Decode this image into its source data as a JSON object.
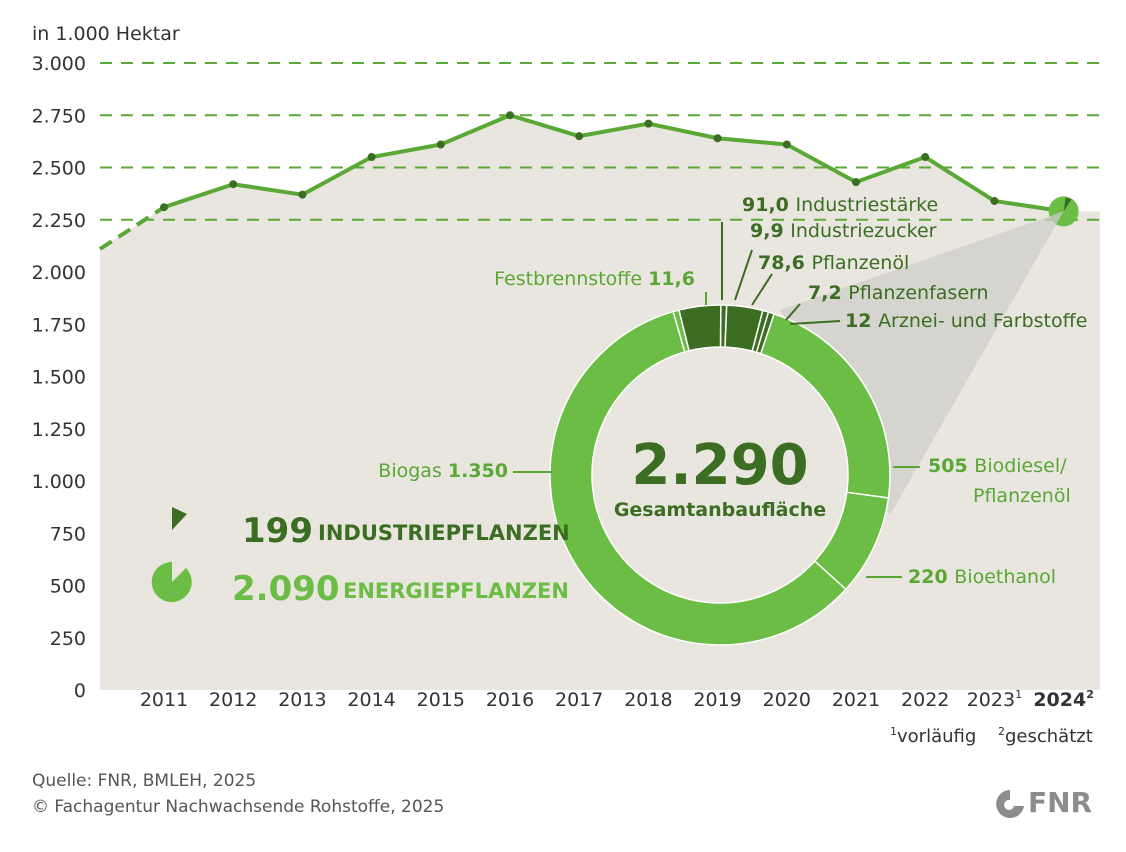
{
  "colors": {
    "light_green": "#6cbd45",
    "mid_green": "#5aa736",
    "dark_green": "#3b6e22",
    "line_green": "#5aa836",
    "area_bg": "#e9e6df",
    "axis_text": "#333333",
    "fnr_grey": "#8c8c8c"
  },
  "header": {
    "unit_label": "in 1.000 Hektar"
  },
  "chart_data": [
    {
      "type": "line",
      "title": "",
      "ylabel": "in 1.000 Hektar",
      "ylim": [
        0,
        3000
      ],
      "yticks": [
        0,
        250,
        500,
        750,
        1000,
        1250,
        1500,
        1750,
        2000,
        2250,
        2500,
        2750,
        3000
      ],
      "ytick_labels": [
        "0",
        "250",
        "500",
        "750",
        "1.000",
        "1.250",
        "1.500",
        "1.750",
        "2.000",
        "2.250",
        "2.500",
        "2.750",
        "3.000"
      ],
      "dashed_gridlines": [
        2250,
        2500,
        2750,
        3000
      ],
      "categories": [
        "2011",
        "2012",
        "2013",
        "2014",
        "2015",
        "2016",
        "2017",
        "2018",
        "2019",
        "2020",
        "2021",
        "2022",
        "2023",
        "2024"
      ],
      "category_superscripts": [
        "",
        "",
        "",
        "",
        "",
        "",
        "",
        "",
        "",
        "",
        "",
        "",
        "1",
        "2"
      ],
      "values": [
        2310,
        2420,
        2370,
        2550,
        2610,
        2750,
        2650,
        2710,
        2640,
        2610,
        2430,
        2550,
        2340,
        2290
      ],
      "lead_in_value_2010": 2110,
      "footnotes": [
        "vorläufig",
        "geschätzt"
      ],
      "footnote_marks": [
        "1",
        "2"
      ]
    },
    {
      "type": "pie",
      "title": "Gesamtanbaufläche",
      "total_label": "2.290",
      "total": 2290,
      "slices": [
        {
          "name": "Industriestärke",
          "value_label": "91,0",
          "value": 91.0,
          "group": "industrie"
        },
        {
          "name": "Industriezucker",
          "value_label": "9,9",
          "value": 9.9,
          "group": "industrie"
        },
        {
          "name": "Pflanzenöl",
          "value_label": "78,6",
          "value": 78.6,
          "group": "industrie"
        },
        {
          "name": "Pflanzenfasern",
          "value_label": "7,2",
          "value": 7.2,
          "group": "industrie"
        },
        {
          "name": "Arznei- und Farbstoffe",
          "value_label": "12",
          "value": 12,
          "group": "industrie"
        },
        {
          "name": "Biodiesel/ Pflanzenöl",
          "value_label": "505",
          "value": 505,
          "group": "energie"
        },
        {
          "name": "Bioethanol",
          "value_label": "220",
          "value": 220,
          "group": "energie"
        },
        {
          "name": "Biogas",
          "value_label": "1.350",
          "value": 1350,
          "group": "energie"
        },
        {
          "name": "Festbrennstoffe",
          "value_label": "11,6",
          "value": 11.6,
          "group": "energie"
        }
      ]
    }
  ],
  "legend": {
    "industrie": {
      "value": "199",
      "label": "INDUSTRIEPFLANZEN"
    },
    "energie": {
      "value": "2.090",
      "label": "ENERGIEPFLANZEN"
    }
  },
  "source": {
    "line1": "Quelle: FNR, BMLEH, 2025",
    "line2": "© Fachagentur Nachwachsende Rohstoffe, 2025"
  },
  "logo": {
    "text": "FNR"
  }
}
